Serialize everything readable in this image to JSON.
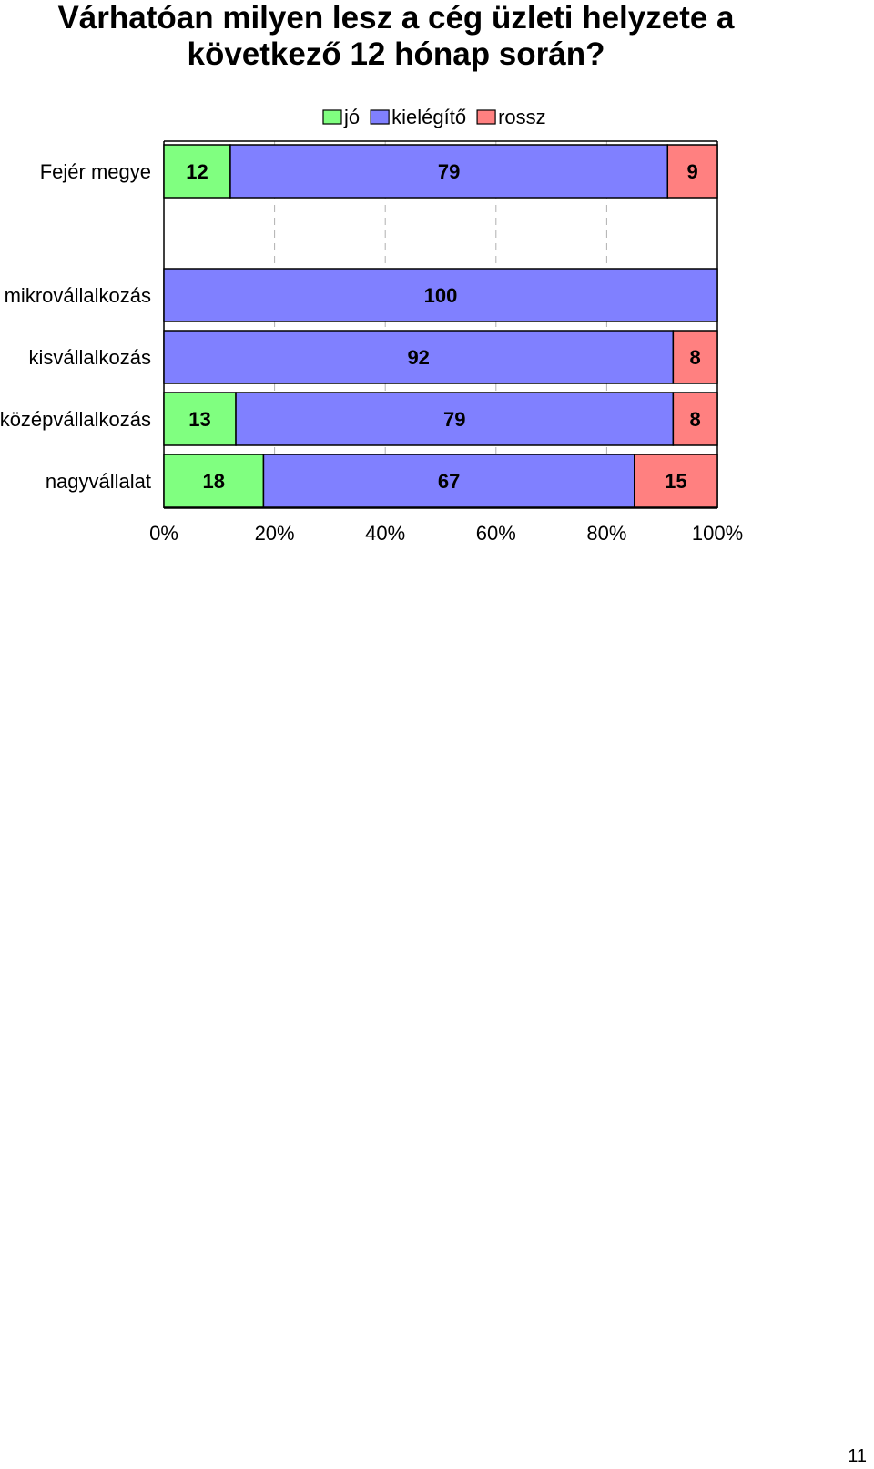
{
  "title_lines": [
    "Várhatóan milyen lesz a cég üzleti helyzete a",
    "következő 12 hónap során?"
  ],
  "page_number": "11",
  "colors": {
    "jo": "#80ff80",
    "kielegito": "#8080ff",
    "rossz": "#ff8080"
  },
  "chart_data": {
    "type": "bar",
    "orientation": "horizontal",
    "stacked": "percent",
    "categories": [
      "Fejér megye",
      "",
      "mikrovállalkozás",
      "kisvállalkozás",
      "középvállalkozás",
      "nagyvállalat"
    ],
    "series": [
      {
        "name": "jó",
        "values": [
          12,
          null,
          0,
          0,
          13,
          18
        ]
      },
      {
        "name": "kielégítő",
        "values": [
          79,
          null,
          100,
          92,
          79,
          67
        ]
      },
      {
        "name": "rossz",
        "values": [
          9,
          null,
          0,
          8,
          8,
          15
        ]
      }
    ],
    "x_ticks": [
      "0%",
      "20%",
      "40%",
      "60%",
      "80%",
      "100%"
    ],
    "xlim": [
      0,
      100
    ],
    "legend_position": "top",
    "grid": "vertical dashed"
  }
}
